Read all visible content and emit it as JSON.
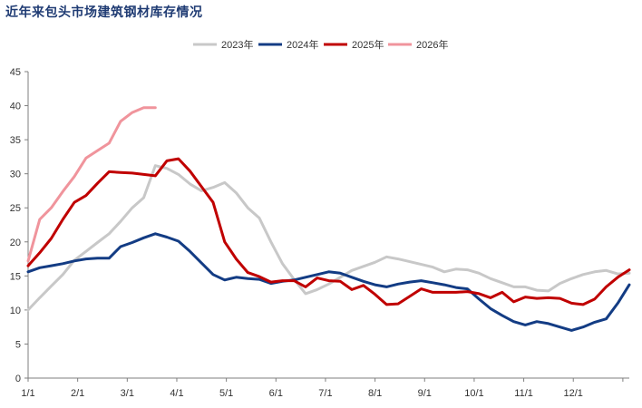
{
  "title": "近年来包头市场建筑钢材库存情况",
  "chart_data": {
    "type": "line",
    "title": "近年来包头市场建筑钢材库存情况",
    "xlabel": "",
    "ylabel": "",
    "x_ticks": [
      "1/1",
      "2/1",
      "3/1",
      "4/1",
      "5/1",
      "6/1",
      "7/1",
      "8/1",
      "9/1",
      "10/1",
      "11/1",
      "12/1"
    ],
    "y_ticks": [
      0,
      5,
      10,
      15,
      20,
      25,
      30,
      35,
      40,
      45
    ],
    "ylim": [
      0,
      45
    ],
    "x_unit": "week",
    "xlim": [
      0,
      52
    ],
    "legend_position": "top",
    "series": [
      {
        "name": "2023年",
        "color": "#c8c8c8",
        "x": [
          0,
          1,
          2,
          3,
          4,
          5,
          6,
          7,
          8,
          9,
          10,
          11,
          12,
          13,
          14,
          15,
          16,
          17,
          18,
          19,
          20,
          21,
          22,
          23,
          24,
          25,
          26,
          27,
          28,
          29,
          30,
          31,
          32,
          33,
          34,
          35,
          36,
          37,
          38,
          39,
          40,
          41,
          42,
          43,
          44,
          45,
          46,
          47,
          48,
          49,
          50,
          51,
          52
        ],
        "values": [
          10.0,
          11.8,
          13.5,
          15.2,
          17.3,
          18.6,
          19.9,
          21.2,
          23.0,
          25.0,
          26.5,
          31.2,
          30.8,
          29.9,
          28.5,
          27.5,
          28.0,
          28.7,
          27.2,
          25.0,
          23.5,
          20.0,
          16.8,
          14.5,
          12.4,
          13.0,
          13.8,
          14.8,
          15.8,
          16.4,
          17.0,
          17.8,
          17.5,
          17.1,
          16.7,
          16.3,
          15.6,
          16.0,
          15.9,
          15.4,
          14.6,
          14.0,
          13.4,
          13.4,
          12.9,
          12.8,
          13.9,
          14.6,
          15.2,
          15.6,
          15.8,
          15.3,
          15.4
        ]
      },
      {
        "name": "2024年",
        "color": "#133c84",
        "x": [
          0,
          1,
          2,
          3,
          4,
          5,
          6,
          7,
          8,
          9,
          10,
          11,
          12,
          13,
          14,
          15,
          16,
          17,
          18,
          19,
          20,
          21,
          22,
          23,
          24,
          25,
          26,
          27,
          28,
          29,
          30,
          31,
          32,
          33,
          34,
          35,
          36,
          37,
          38,
          39,
          40,
          41,
          42,
          43,
          44,
          45,
          46,
          47,
          48,
          49,
          50,
          51,
          52
        ],
        "values": [
          15.6,
          16.2,
          16.5,
          16.8,
          17.2,
          17.5,
          17.6,
          17.6,
          19.3,
          19.9,
          20.6,
          21.2,
          20.7,
          20.1,
          18.6,
          16.9,
          15.2,
          14.4,
          14.8,
          14.6,
          14.5,
          13.9,
          14.2,
          14.4,
          14.8,
          15.2,
          15.6,
          15.4,
          14.8,
          14.2,
          13.7,
          13.4,
          13.8,
          14.1,
          14.3,
          14.0,
          13.7,
          13.3,
          13.1,
          11.6,
          10.2,
          9.2,
          8.3,
          7.8,
          8.3,
          8.0,
          7.5,
          7.0,
          7.5,
          8.2,
          8.7,
          11.0,
          13.7
        ]
      },
      {
        "name": "2025年",
        "color": "#c00000",
        "x": [
          0,
          1,
          2,
          3,
          4,
          5,
          6,
          7,
          8,
          9,
          10,
          11,
          12,
          13,
          14,
          15,
          16,
          17,
          18,
          19,
          20,
          21,
          22,
          23,
          24,
          25,
          26,
          27,
          28,
          29,
          30,
          31,
          32,
          33,
          34,
          35,
          36,
          37,
          38,
          39,
          40,
          41,
          42,
          43,
          44,
          45,
          46,
          47,
          48,
          49,
          50,
          51,
          52
        ],
        "values": [
          16.5,
          18.4,
          20.5,
          23.3,
          25.8,
          26.8,
          28.6,
          30.3,
          30.2,
          30.1,
          29.9,
          29.7,
          31.9,
          32.2,
          30.4,
          28.1,
          25.8,
          20.0,
          17.5,
          15.5,
          14.9,
          14.1,
          14.3,
          14.3,
          13.4,
          14.7,
          14.3,
          14.2,
          13.0,
          13.6,
          12.3,
          10.8,
          10.9,
          12.0,
          13.1,
          12.6,
          12.6,
          12.6,
          12.7,
          12.4,
          11.8,
          12.6,
          11.2,
          11.9,
          11.7,
          11.8,
          11.7,
          11.0,
          10.8,
          11.6,
          13.4,
          14.8,
          15.9
        ]
      },
      {
        "name": "2026年",
        "color": "#f0949c",
        "x": [
          0,
          1,
          2,
          3,
          4,
          5,
          6,
          7,
          8,
          9,
          10,
          11
        ],
        "values": [
          17.2,
          23.3,
          25.0,
          27.4,
          29.6,
          32.3,
          33.4,
          34.5,
          37.7,
          39.0,
          39.7,
          39.7
        ]
      }
    ]
  }
}
